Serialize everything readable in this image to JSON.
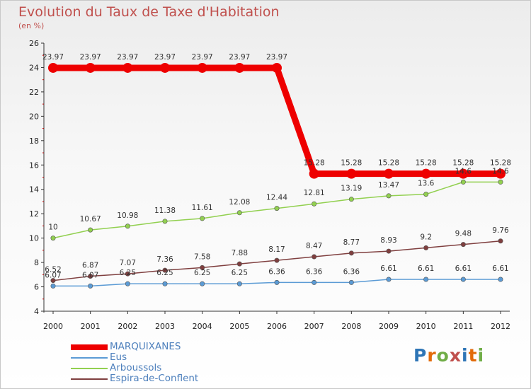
{
  "title": "Evolution du Taux de Taxe d'Habitation",
  "subtitle": "(en %)",
  "logo": {
    "letters": [
      "P",
      "r",
      "o",
      "x",
      "i",
      "t",
      "i"
    ],
    "colors": [
      "#2e75b6",
      "#e26b0a",
      "#70ad47",
      "#c0504d",
      "#2e75b6",
      "#e26b0a",
      "#70ad47"
    ]
  },
  "chart_data": {
    "type": "line",
    "x": [
      "2000",
      "2001",
      "2002",
      "2003",
      "2004",
      "2005",
      "2006",
      "2007",
      "2008",
      "2009",
      "2010",
      "2011",
      "2012"
    ],
    "ylim": [
      4,
      26
    ],
    "yticks": [
      4,
      6,
      8,
      10,
      12,
      14,
      16,
      18,
      20,
      22,
      24,
      26
    ],
    "series": [
      {
        "name": "MARQUIXANES",
        "color": "#ee0000",
        "thick": true,
        "values": [
          23.97,
          23.97,
          23.97,
          23.97,
          23.97,
          23.97,
          23.97,
          15.28,
          15.28,
          15.28,
          15.28,
          15.28,
          15.28
        ],
        "labels": [
          "23.97",
          "23.97",
          "23.97",
          "23.97",
          "23.97",
          "23.97",
          "23.97",
          "15.28",
          "15.28",
          "15.28",
          "15.28",
          "15.28",
          "15.28"
        ]
      },
      {
        "name": "Eus",
        "color": "#5b9bd5",
        "thick": false,
        "values": [
          6.07,
          6.07,
          6.25,
          6.25,
          6.25,
          6.25,
          6.36,
          6.36,
          6.36,
          6.61,
          6.61,
          6.61,
          6.61
        ],
        "labels": [
          "6.07",
          "6.07",
          "6.25",
          "6.25",
          "6.25",
          "6.25",
          "6.36",
          "6.36",
          "6.36",
          "6.61",
          "6.61",
          "6.61",
          "6.61"
        ]
      },
      {
        "name": "Arboussols",
        "color": "#92d050",
        "thick": false,
        "values": [
          10,
          10.67,
          10.98,
          11.38,
          11.61,
          12.08,
          12.44,
          12.81,
          13.19,
          13.47,
          13.6,
          14.6,
          14.6
        ],
        "labels": [
          "10",
          "10.67",
          "10.98",
          "11.38",
          "11.61",
          "12.08",
          "12.44",
          "12.81",
          "13.19",
          "13.47",
          "13.6",
          "14.6",
          "14.6"
        ]
      },
      {
        "name": "Espira-de-Conflent",
        "color": "#7f3f3f",
        "thick": false,
        "values": [
          6.52,
          6.87,
          7.07,
          7.36,
          7.58,
          7.88,
          8.17,
          8.47,
          8.77,
          8.93,
          9.2,
          9.48,
          9.76
        ],
        "labels": [
          "6.52",
          "6.87",
          "7.07",
          "7.36",
          "7.58",
          "7.88",
          "8.17",
          "8.47",
          "8.77",
          "8.93",
          "9.2",
          "9.48",
          "9.76"
        ]
      }
    ]
  }
}
